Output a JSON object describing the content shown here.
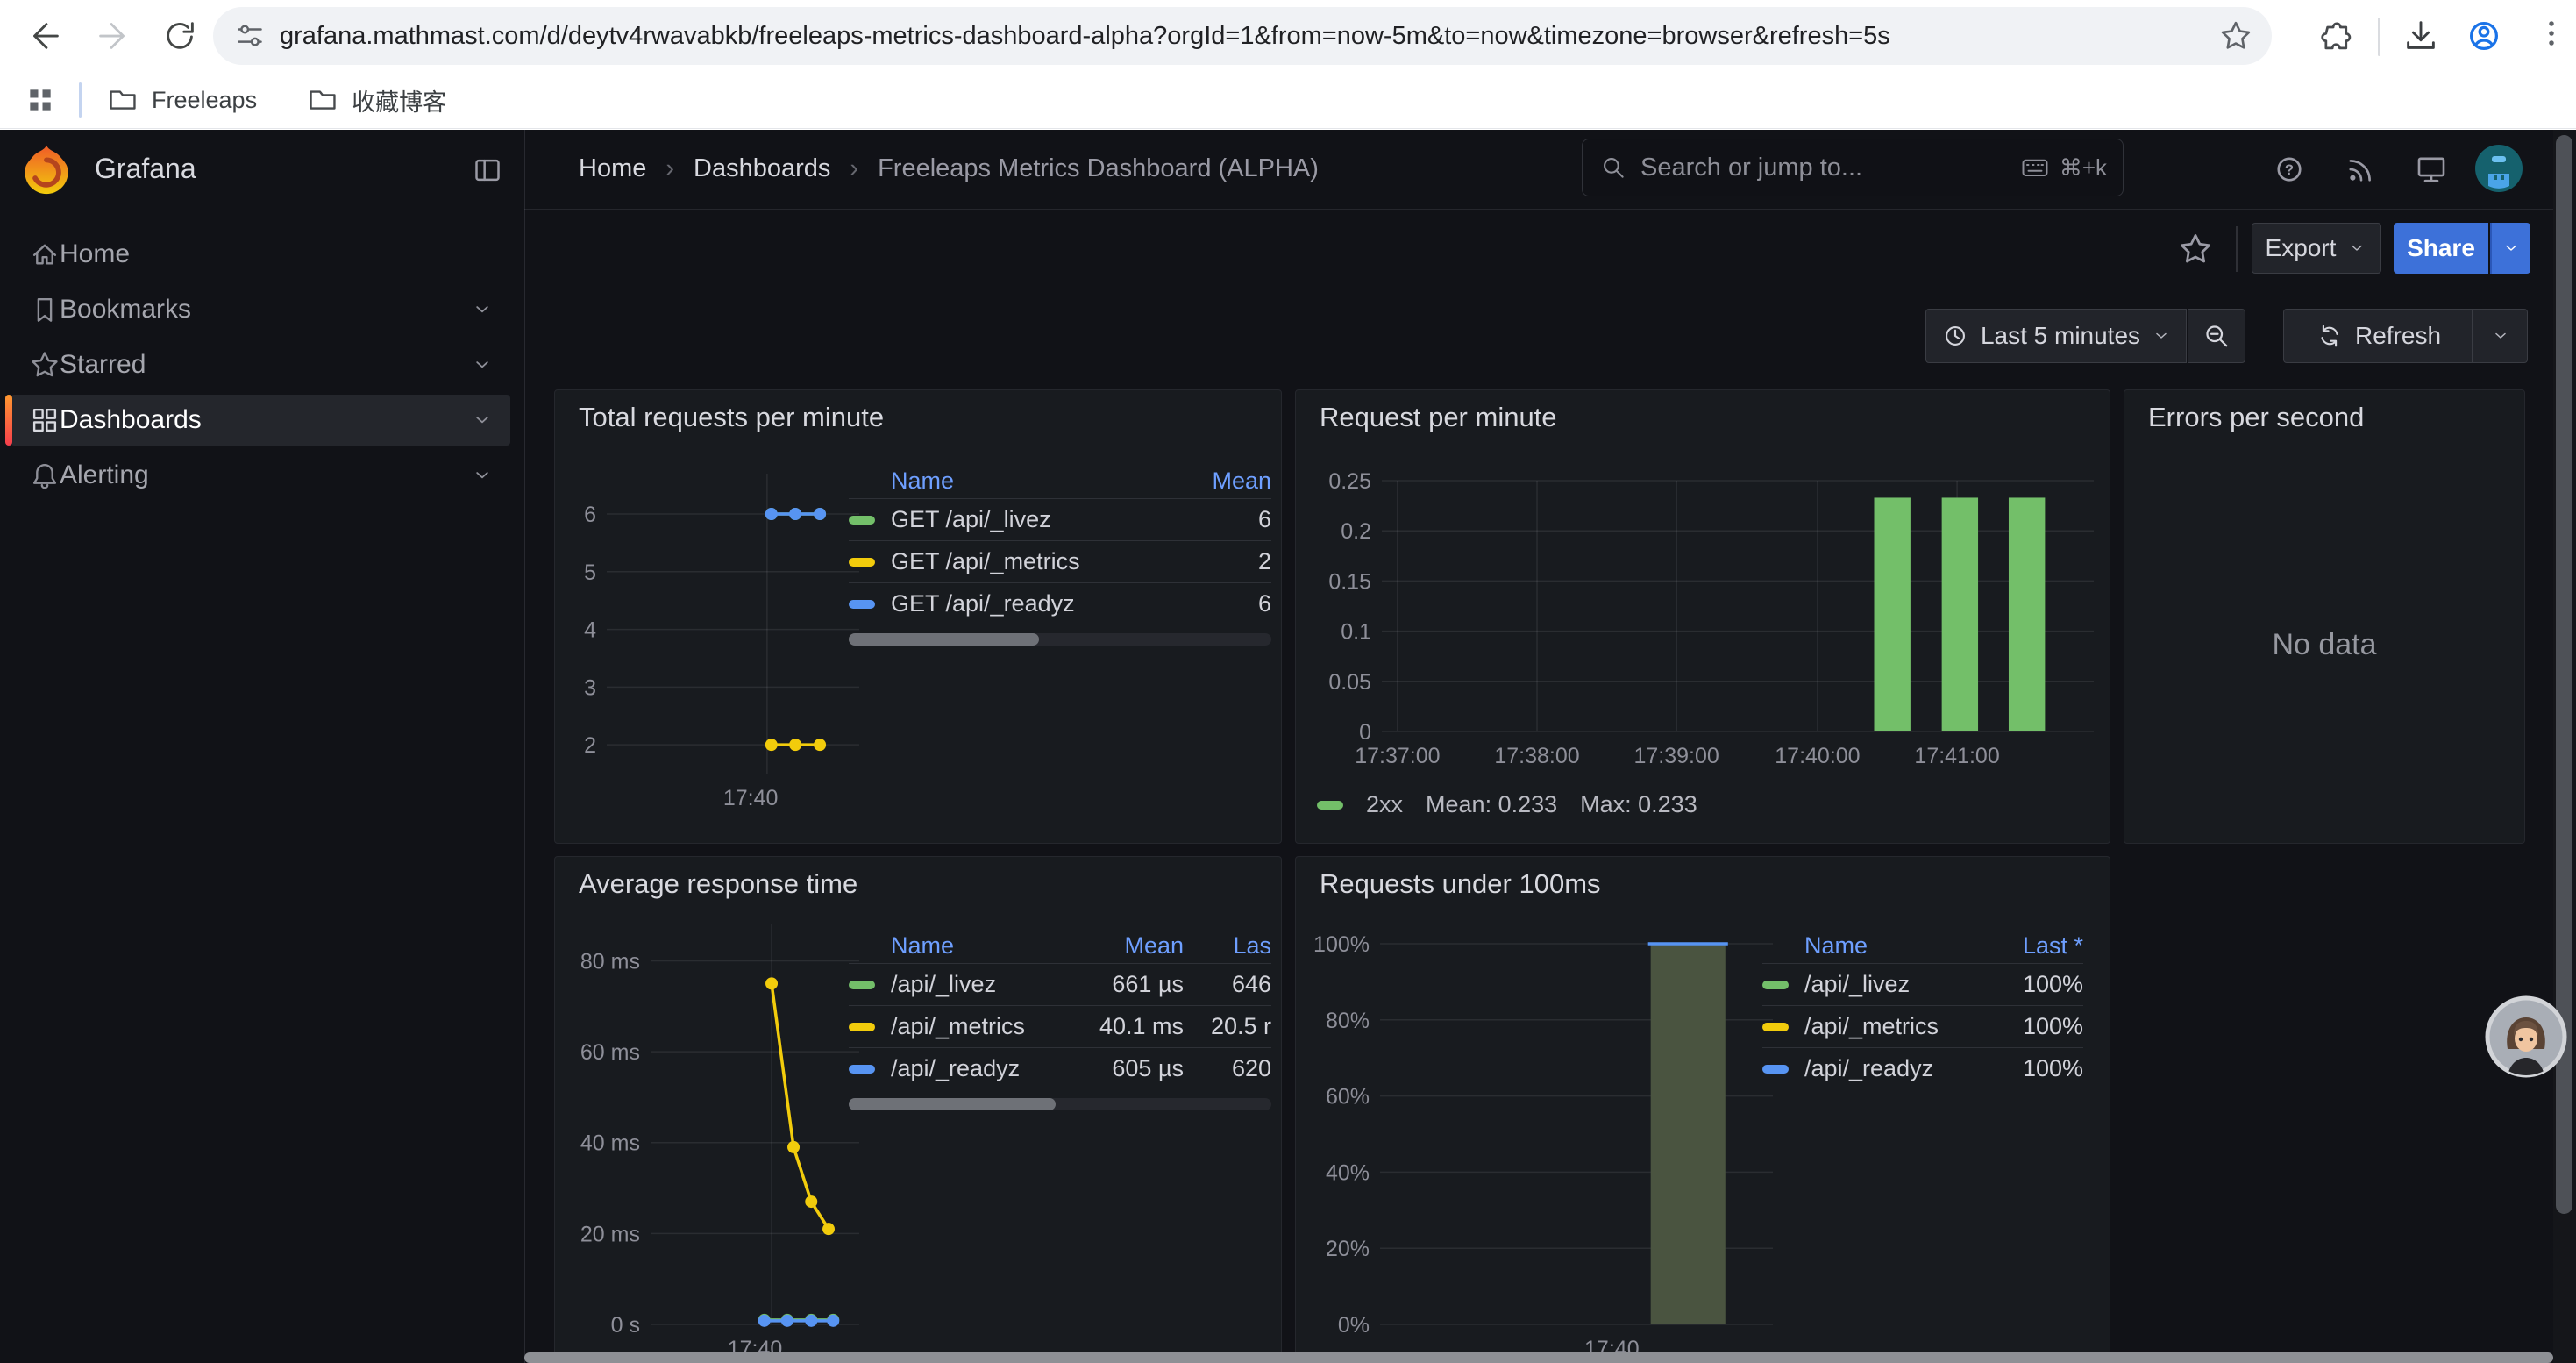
{
  "theme": {
    "accent_blue": "#3d71d9",
    "link_blue": "#6e9fff",
    "series_green": "#73bf69",
    "series_yellow": "#f2cc0c",
    "series_blue": "#5794f2",
    "panel_bg": "#181b1f",
    "canvas_bg": "#111217",
    "active_orange": "#ff8833"
  },
  "browser": {
    "url": "grafana.mathmast.com/d/deytv4rwavabkb/freeleaps-metrics-dashboard-alpha?orgId=1&from=now-5m&to=now&timezone=browser&refresh=5s",
    "bookmark_folders": [
      {
        "label": "Freeleaps"
      },
      {
        "label": "收藏博客"
      }
    ]
  },
  "sidebar": {
    "brand": "Grafana",
    "items": [
      {
        "label": "Home"
      },
      {
        "label": "Bookmarks"
      },
      {
        "label": "Starred"
      },
      {
        "label": "Dashboards"
      },
      {
        "label": "Alerting"
      }
    ]
  },
  "header": {
    "breadcrumbs": {
      "home": "Home",
      "section": "Dashboards",
      "page": "Freeleaps Metrics Dashboard (ALPHA)"
    },
    "breadcrumb_sep": "›",
    "search_placeholder": "Search or jump to...",
    "search_shortcut": "⌘+k"
  },
  "toolbar": {
    "export_label": "Export",
    "share_label": "Share",
    "time_range": "Last 5 minutes",
    "refresh_label": "Refresh"
  },
  "panels": {
    "total_requests": {
      "title": "Total requests per minute",
      "legend": {
        "h_name": "Name",
        "h_mean": "Mean",
        "rows": [
          {
            "name": "GET /api/_livez",
            "color": "#73bf69",
            "mean": "6"
          },
          {
            "name": "GET /api/_metrics",
            "color": "#f2cc0c",
            "mean": "2"
          },
          {
            "name": "GET /api/_readyz",
            "color": "#5794f2",
            "mean": "6"
          }
        ]
      }
    },
    "request_per_minute": {
      "title": "Request per minute",
      "legend": {
        "series": "2xx",
        "mean": "Mean: 0.233",
        "max": "Max: 0.233",
        "color": "#73bf69"
      }
    },
    "errors_per_second": {
      "title": "Errors per second",
      "no_data": "No data"
    },
    "avg_response_time": {
      "title": "Average response time",
      "legend": {
        "h_name": "Name",
        "h_mean": "Mean",
        "h_last": "Las",
        "rows": [
          {
            "name": "/api/_livez",
            "color": "#73bf69",
            "mean": "661 µs",
            "last": "646"
          },
          {
            "name": "/api/_metrics",
            "color": "#f2cc0c",
            "mean": "40.1 ms",
            "last": "20.5 r"
          },
          {
            "name": "/api/_readyz",
            "color": "#5794f2",
            "mean": "605 µs",
            "last": "620"
          }
        ]
      }
    },
    "requests_under_100ms": {
      "title": "Requests under 100ms",
      "legend": {
        "h_name": "Name",
        "h_last": "Last *",
        "rows": [
          {
            "name": "/api/_livez",
            "color": "#73bf69",
            "last": "100%"
          },
          {
            "name": "/api/_metrics",
            "color": "#f2cc0c",
            "last": "100%"
          },
          {
            "name": "/api/_readyz",
            "color": "#5794f2",
            "last": "100%"
          }
        ]
      }
    }
  },
  "chart_data": {
    "total_requests": {
      "type": "line",
      "title": "Total requests per minute",
      "plot": [
        44,
        10,
        332,
        352
      ],
      "ylim": [
        1.5,
        6.7
      ],
      "yticks": [
        6,
        5,
        4,
        3,
        2
      ],
      "ytick_labels": [
        "6",
        "5",
        "4",
        "3",
        "2"
      ],
      "vlines": [
        0.635
      ],
      "xticks": [
        {
          "pos": 0.57,
          "label": "17:40"
        }
      ],
      "series": [
        {
          "name": "GET /api/_livez",
          "color": "#73bf69",
          "mean": 6,
          "points": [
            [
              0.652,
              6
            ],
            [
              0.747,
              6
            ],
            [
              0.844,
              6
            ]
          ]
        },
        {
          "name": "GET /api/_readyz",
          "color": "#5794f2",
          "mean": 6,
          "points": [
            [
              0.652,
              6
            ],
            [
              0.747,
              6
            ],
            [
              0.844,
              6
            ]
          ]
        },
        {
          "name": "GET /api/_metrics",
          "color": "#f2cc0c",
          "mean": 2,
          "points": [
            [
              0.652,
              2
            ],
            [
              0.747,
              2
            ],
            [
              0.844,
              2
            ]
          ]
        }
      ]
    },
    "request_per_minute": {
      "type": "bar",
      "title": "Request per minute",
      "plot": [
        86,
        20,
        898,
        306
      ],
      "ylim": [
        0,
        0.25
      ],
      "yticks": [
        0.25,
        0.2,
        0.15,
        0.1,
        0.05,
        0
      ],
      "ytick_labels": [
        "0.25",
        "0.2",
        "0.15",
        "0.1",
        "0.05",
        "0"
      ],
      "vlines": [
        0.022,
        0.218,
        0.414,
        0.612,
        0.808
      ],
      "xticks": [
        {
          "pos": 0.022,
          "label": "17:37:00"
        },
        {
          "pos": 0.218,
          "label": "17:38:00"
        },
        {
          "pos": 0.414,
          "label": "17:39:00"
        },
        {
          "pos": 0.612,
          "label": "17:40:00"
        },
        {
          "pos": 0.808,
          "label": "17:41:00"
        }
      ],
      "bar_width": 0.051,
      "color": "#73bf69",
      "bars": [
        {
          "pos": 0.717,
          "value": 0.233
        },
        {
          "pos": 0.812,
          "value": 0.233
        },
        {
          "pos": 0.906,
          "value": 0.233
        }
      ],
      "series_label": "2xx",
      "mean": 0.233,
      "max": 0.233
    },
    "avg_response_time": {
      "type": "line",
      "title": "Average response time",
      "plot": [
        94,
        14,
        332,
        470
      ],
      "ylim": [
        0,
        88
      ],
      "yticks": [
        80,
        60,
        40,
        20,
        0
      ],
      "ytick_labels": [
        "80 ms",
        "60 ms",
        "40 ms",
        "20 ms",
        "0 s"
      ],
      "vlines": [
        0.58
      ],
      "xticks": [
        {
          "pos": 0.5,
          "label": "17:40"
        }
      ],
      "series": [
        {
          "name": "/api/_livez",
          "color": "#73bf69",
          "points": [
            [
              0.545,
              1.0
            ],
            [
              0.655,
              1.0
            ],
            [
              0.77,
              1.0
            ],
            [
              0.875,
              1.0
            ]
          ]
        },
        {
          "name": "/api/_readyz",
          "color": "#5794f2",
          "points": [
            [
              0.545,
              0.8
            ],
            [
              0.655,
              0.8
            ],
            [
              0.77,
              0.8
            ],
            [
              0.875,
              0.8
            ]
          ]
        },
        {
          "name": "/api/_metrics",
          "color": "#f2cc0c",
          "points": [
            [
              0.58,
              75
            ],
            [
              0.685,
              39
            ],
            [
              0.77,
              27
            ],
            [
              0.853,
              21
            ]
          ]
        }
      ]
    },
    "requests_under_100ms": {
      "type": "bar",
      "title": "Requests under 100ms",
      "plot": [
        84,
        36,
        532,
        470
      ],
      "ylim": [
        0,
        1
      ],
      "yticks": [
        1,
        0.8,
        0.6,
        0.4,
        0.2,
        0
      ],
      "ytick_labels": [
        "100%",
        "80%",
        "60%",
        "40%",
        "20%",
        "0%"
      ],
      "vlines": [
        0.704
      ],
      "xticks": [
        {
          "pos": 0.59,
          "label": "17:40"
        }
      ],
      "bar_width": 0.19,
      "color": "#4a5440",
      "bar_top_color": "#5794f2",
      "bars": [
        {
          "pos": 0.784,
          "value": 1
        }
      ]
    }
  }
}
